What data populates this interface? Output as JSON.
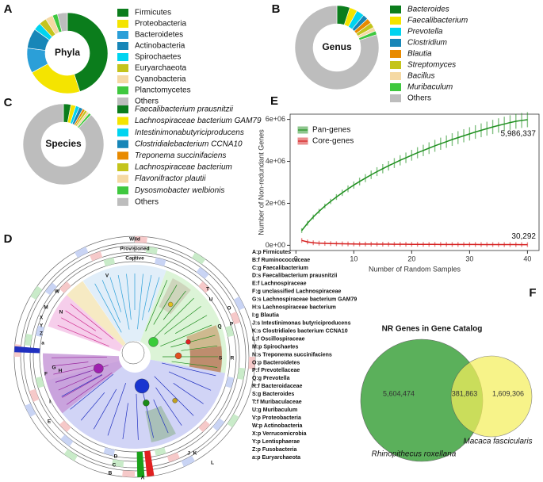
{
  "chart_data": [
    {
      "type": "pie",
      "panel": "A",
      "center_label": "Phyla",
      "italic": false,
      "categories": [
        "Firmicutes",
        "Proteobacteria",
        "Bacteroidetes",
        "Actinobacteria",
        "Spirochaetes",
        "Euryarchaeota",
        "Cyanobacteria",
        "Planctomycetes",
        "Others"
      ],
      "values": [
        45,
        22,
        10,
        8,
        3,
        3,
        3,
        2,
        4
      ],
      "colors": [
        "#0b7d1c",
        "#f4e400",
        "#2b9fd8",
        "#1786b8",
        "#00d4f0",
        "#c4c41c",
        "#f5d9a3",
        "#3fc83f",
        "#bdbdbd"
      ]
    },
    {
      "type": "pie",
      "panel": "B",
      "center_label": "Genus",
      "italic": true,
      "categories": [
        "Bacteroides",
        "Faecalibacterium",
        "Prevotella",
        "Clostridium",
        "Blautia",
        "Streptomyces",
        "Bacillus",
        "Muribaculum",
        "Others"
      ],
      "values": [
        5,
        3,
        3,
        2,
        2,
        2,
        1.5,
        1.5,
        80
      ],
      "colors": [
        "#0b7d1c",
        "#f4e400",
        "#00d4f0",
        "#1786b8",
        "#e88a00",
        "#c4c41c",
        "#f5d9a3",
        "#3fc83f",
        "#bdbdbd"
      ]
    },
    {
      "type": "pie",
      "panel": "C",
      "center_label": "Species",
      "italic": true,
      "categories": [
        "Faecalibacterium prausnitzii",
        "Lachnospiraceae bacterium GAM79",
        "Intestinimonabutyriciproducens",
        "Clostridialebacterium CCNA10",
        "Treponema succinifaciens",
        "Lachnospiraceae bacterium",
        "Flavonifractor plautii",
        "Dysosmobacter welbionis",
        "Others"
      ],
      "values": [
        3,
        2,
        1.5,
        1.5,
        1,
        1,
        1,
        1,
        88
      ],
      "colors": [
        "#0b7d1c",
        "#f4e400",
        "#00d4f0",
        "#1786b8",
        "#e88a00",
        "#c4c41c",
        "#f5d9a3",
        "#3fc83f",
        "#bdbdbd"
      ]
    },
    {
      "type": "cladogram",
      "panel": "D",
      "rings": [
        "Wild",
        "Provisioned",
        "Captive"
      ],
      "clade_labels": [
        "V",
        "W",
        "M",
        "N",
        "X",
        "Y",
        "Z",
        "a",
        "T",
        "U",
        "O",
        "P",
        "Q",
        "S",
        "R",
        "G",
        "H",
        "F",
        "I",
        "E",
        "D",
        "C",
        "B",
        "J",
        "K",
        "L",
        "A"
      ],
      "legend": [
        "A:p Firmicutes",
        "B:f Ruminococcaceae",
        "C:g Faecalibacterium",
        "D:s Faecalibacterium prausnitzii",
        "E:f Lachnospiraceae",
        "F:g unclassified Lachnospiraceae",
        "G:s Lachnospiraceae bacterium GAM79",
        "H:s Lachnospiraceae bacterium",
        "I:g Blautia",
        "J:s Intestinimonas butyriciproducens",
        "K:s Clostridiales bacterium CCNA10",
        "L:f Oscillospiraceae",
        "M:p Spirochaetes",
        "N:s Treponema succinifaciens",
        "O:p Bacteroidetes",
        "P:f Prevotellaceae",
        "Q:g Prevotella",
        "R:f Bacteroidaceae",
        "S:g Bacteroides",
        "T:f Muribaculaceae",
        "U:g Muribaculum",
        "V:p Proteobacteria",
        "W:p Actinobacteria",
        "X:p Verrucomicrobia",
        "Y:p Lentisphaerae",
        "Z:p Fusobacteria",
        "a:p Euryarchaeota"
      ]
    },
    {
      "type": "line",
      "panel": "E",
      "xlabel": "Number of Random Samples",
      "ylabel": "Number of Non-redundant Genes",
      "x": [
        1,
        2,
        3,
        4,
        5,
        6,
        7,
        8,
        9,
        10,
        11,
        12,
        13,
        14,
        15,
        16,
        17,
        18,
        19,
        20,
        21,
        22,
        23,
        24,
        25,
        26,
        27,
        28,
        29,
        30,
        31,
        32,
        33,
        34,
        35,
        36,
        37,
        38,
        39,
        40
      ],
      "series": [
        {
          "name": "Pan-genes",
          "color": "#1f8f1f",
          "end_label": "5,986,337",
          "values": [
            700000,
            1050000,
            1350000,
            1620000,
            1870000,
            2090000,
            2300000,
            2500000,
            2690000,
            2870000,
            3040000,
            3200000,
            3360000,
            3510000,
            3650000,
            3790000,
            3920000,
            4050000,
            4170000,
            4290000,
            4410000,
            4520000,
            4630000,
            4740000,
            4840000,
            4940000,
            5040000,
            5130000,
            5220000,
            5310000,
            5400000,
            5480000,
            5560000,
            5640000,
            5710000,
            5780000,
            5850000,
            5910000,
            5950000,
            5986337
          ]
        },
        {
          "name": "Core-genes",
          "color": "#d62020",
          "end_label": "30,292",
          "values": [
            230000,
            160000,
            120000,
            100000,
            88000,
            80000,
            74000,
            69000,
            65000,
            62000,
            59000,
            57000,
            55000,
            53000,
            51500,
            50000,
            48500,
            47000,
            46000,
            45000,
            44000,
            43000,
            42000,
            41200,
            40400,
            39600,
            38800,
            38000,
            37300,
            36600,
            35900,
            35200,
            34500,
            33800,
            33100,
            32500,
            31900,
            31300,
            30800,
            30292
          ]
        }
      ],
      "xlim": [
        -1,
        42
      ],
      "xticks": [
        0,
        10,
        20,
        30,
        40
      ],
      "ylim": [
        -250000,
        6250000
      ],
      "yticks": [
        {
          "value": 0,
          "label": "0e+00"
        },
        {
          "value": 2000000,
          "label": "2e+06"
        },
        {
          "value": 4000000,
          "label": "4e+06"
        },
        {
          "value": 6000000,
          "label": "6e+06"
        }
      ],
      "legend": "upper left"
    },
    {
      "type": "venn",
      "panel": "F",
      "title": "NR Genes in Gene Catalog",
      "sets": [
        {
          "name": "Rhinopithecus roxellana",
          "color": "#4aa84a"
        },
        {
          "name": "Macaca fascicularis",
          "color": "#f5ef5c"
        }
      ],
      "values": [
        5604474,
        381863,
        1609306
      ],
      "value_labels": [
        "5,604,474",
        "381,863",
        "1,609,306"
      ]
    }
  ]
}
